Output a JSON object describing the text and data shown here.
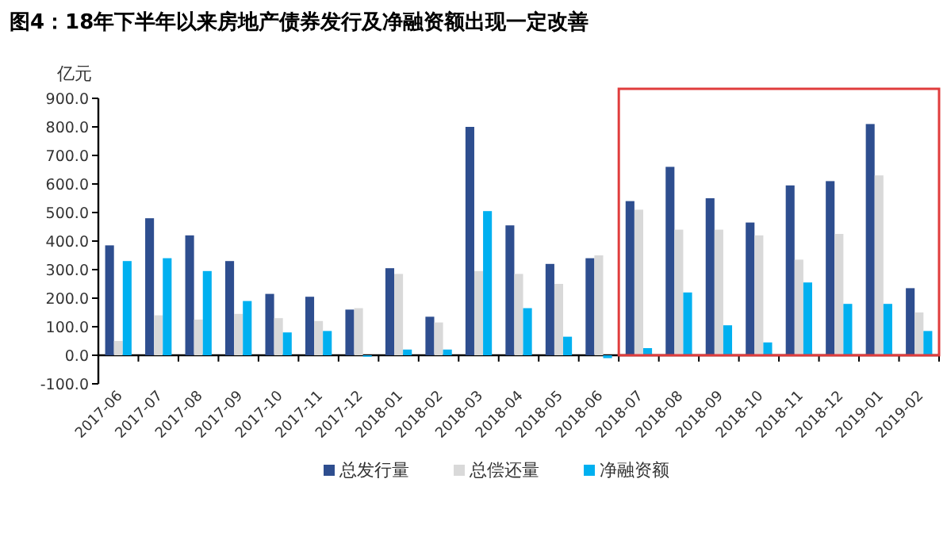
{
  "chart_data": {
    "type": "bar",
    "title": "图4：18年下半年以来房地产债券发行及净融资额出现一定改善",
    "ylabel": "亿元",
    "categories": [
      "2017-06",
      "2017-07",
      "2017-08",
      "2017-09",
      "2017-10",
      "2017-11",
      "2017-12",
      "2018-01",
      "2018-02",
      "2018-03",
      "2018-04",
      "2018-05",
      "2018-06",
      "2018-07",
      "2018-08",
      "2018-09",
      "2018-10",
      "2018-11",
      "2018-12",
      "2019-01",
      "2019-02"
    ],
    "series": [
      {
        "name": "总发行量",
        "color": "#2e4e8f",
        "values": [
          385,
          480,
          420,
          330,
          215,
          205,
          160,
          305,
          135,
          800,
          455,
          320,
          340,
          540,
          660,
          550,
          465,
          595,
          610,
          810,
          235
        ]
      },
      {
        "name": "总偿还量",
        "color": "#d9d9d9",
        "values": [
          50,
          140,
          125,
          145,
          130,
          120,
          165,
          285,
          115,
          295,
          285,
          250,
          350,
          510,
          440,
          440,
          420,
          335,
          425,
          630,
          150
        ]
      },
      {
        "name": "净融资额",
        "color": "#00b0f0",
        "values": [
          330,
          340,
          295,
          190,
          80,
          85,
          -5,
          20,
          20,
          505,
          165,
          65,
          -10,
          25,
          220,
          105,
          45,
          255,
          180,
          180,
          85
        ]
      }
    ],
    "ylim": [
      -100,
      900
    ],
    "yticks": [
      {
        "value": -100,
        "label": "-100.0"
      },
      {
        "value": 0,
        "label": "0.0"
      },
      {
        "value": 100,
        "label": "100.0"
      },
      {
        "value": 200,
        "label": "200.0"
      },
      {
        "value": 300,
        "label": "300.0"
      },
      {
        "value": 400,
        "label": "400.0"
      },
      {
        "value": 500,
        "label": "500.0"
      },
      {
        "value": 600,
        "label": "600.0"
      },
      {
        "value": 700,
        "label": "700.0"
      },
      {
        "value": 800,
        "label": "800.0"
      },
      {
        "value": 900,
        "label": "900.0"
      }
    ],
    "legend": "bottom"
  }
}
